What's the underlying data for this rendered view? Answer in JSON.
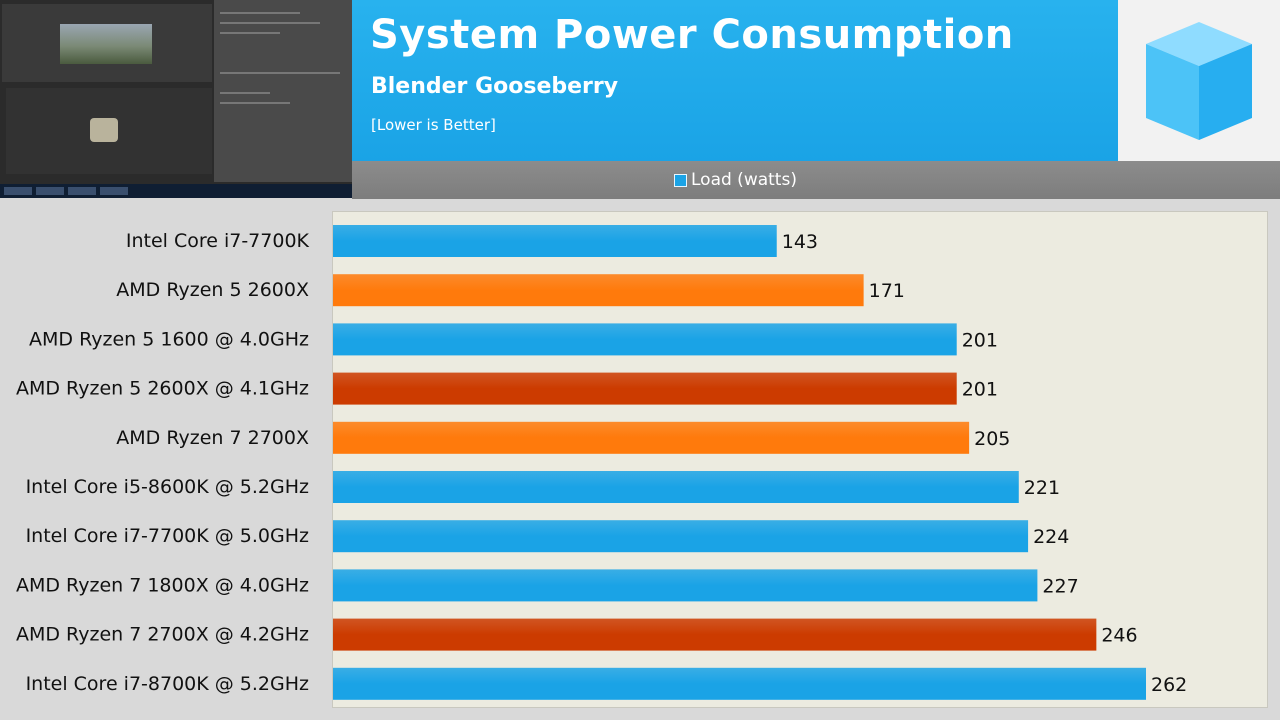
{
  "header": {
    "title": "System Power Consumption",
    "subtitle": "Blender Gooseberry",
    "note": "[Lower is Better]"
  },
  "legend": {
    "label": "Load (watts)",
    "color": "#1aa3e6"
  },
  "chart_data": {
    "type": "bar",
    "orientation": "horizontal",
    "title": "System Power Consumption",
    "subtitle": "Blender Gooseberry",
    "note": "[Lower is Better]",
    "categories": [
      "Intel Core i7-7700K",
      "AMD Ryzen 5 2600X",
      "AMD Ryzen 5 1600 @ 4.0GHz",
      "AMD Ryzen 5 2600X @ 4.1GHz",
      "AMD Ryzen 7 2700X",
      "Intel Core i5-8600K @ 5.2GHz",
      "Intel Core i7-7700K @ 5.0GHz",
      "AMD Ryzen 7 1800X @ 4.0GHz",
      "AMD Ryzen 7 2700X @ 4.2GHz",
      "Intel Core i7-8700K @ 5.2GHz"
    ],
    "series": [
      {
        "name": "Load (watts)",
        "values": [
          143,
          171,
          201,
          201,
          205,
          221,
          224,
          227,
          246,
          262
        ]
      }
    ],
    "bar_colors": [
      "#1aa3e6",
      "#ff7a0c",
      "#1aa3e6",
      "#cc3b00",
      "#ff7a0c",
      "#1aa3e6",
      "#1aa3e6",
      "#1aa3e6",
      "#cc3b00",
      "#1aa3e6"
    ],
    "xlim": [
      0,
      300
    ],
    "grid": false,
    "legend_position": "top-center"
  }
}
